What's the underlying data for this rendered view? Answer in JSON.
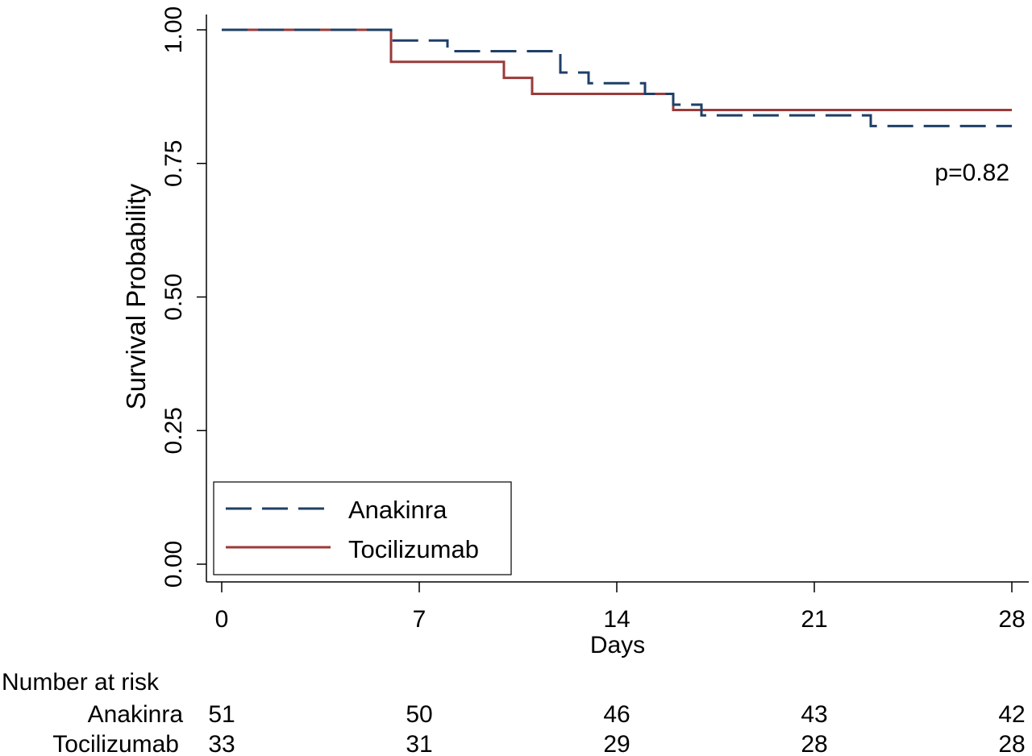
{
  "chart_data": {
    "type": "line",
    "xlabel": "Days",
    "ylabel": "Survival Probability",
    "xlim": [
      0,
      28
    ],
    "ylim": [
      0,
      1
    ],
    "x_ticks": [
      0,
      7,
      14,
      21,
      28
    ],
    "x_tick_labels": [
      "0",
      "7",
      "14",
      "21",
      "28"
    ],
    "y_ticks": [
      0,
      0.25,
      0.5,
      0.75,
      1
    ],
    "y_tick_labels": [
      "0.00",
      "0.25",
      "0.50",
      "0.75",
      "1.00"
    ],
    "grid": false,
    "legend_placement": "bottom-left",
    "annotation": "p=0.82",
    "series": [
      {
        "name": "Anakinra",
        "style": "dashed",
        "color": "#1f3f66",
        "steps": [
          [
            0,
            1.0
          ],
          [
            6,
            0.98
          ],
          [
            8,
            0.96
          ],
          [
            12,
            0.92
          ],
          [
            13,
            0.9
          ],
          [
            15,
            0.88
          ],
          [
            16,
            0.86
          ],
          [
            17,
            0.84
          ],
          [
            23,
            0.82
          ],
          [
            28,
            0.82
          ]
        ]
      },
      {
        "name": "Tocilizumab",
        "style": "solid",
        "color": "#9b3a3a",
        "steps": [
          [
            0,
            1.0
          ],
          [
            6,
            0.94
          ],
          [
            10,
            0.91
          ],
          [
            11,
            0.88
          ],
          [
            16,
            0.85
          ],
          [
            28,
            0.85
          ]
        ]
      }
    ],
    "risk_table": {
      "title": "Number at risk",
      "rows": [
        {
          "name": "Anakinra",
          "counts": [
            "51",
            "50",
            "46",
            "43",
            "42"
          ]
        },
        {
          "name": "Tocilizumab",
          "counts": [
            "33",
            "31",
            "29",
            "28",
            "28"
          ]
        }
      ]
    }
  }
}
